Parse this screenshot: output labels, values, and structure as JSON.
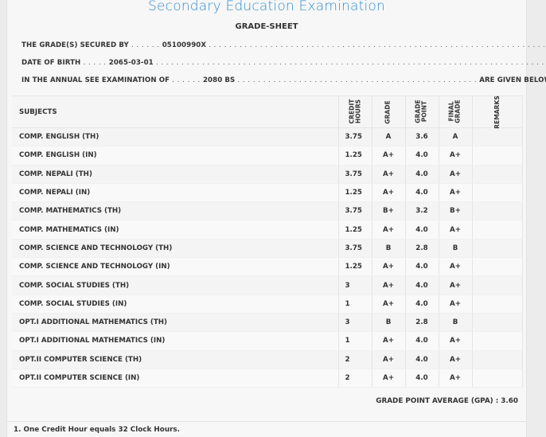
{
  "header": {
    "title": "Secondary Education Examination",
    "subtitle": "GRADE-SHEET"
  },
  "info": {
    "secured_by_label": "THE GRADE(S) SECURED BY",
    "secured_by_value": "05100990X",
    "dob_label": "DATE OF BIRTH",
    "dob_value": "2065-03-01",
    "exam_label": "IN THE ANNUAL SEE EXAMINATION OF",
    "exam_value": "2080 BS",
    "exam_suffix": "ARE GIVEN BELOW"
  },
  "table": {
    "headers": {
      "subjects": "SUBJECTS",
      "credit_hours": "CREDIT HOURS",
      "grade": "GRADE",
      "grade_point": "GRADE POINT",
      "final_grade": "FINAL GRADE",
      "remarks": "REMARKS"
    },
    "rows": [
      {
        "subject": "COMP. ENGLISH (TH)",
        "credit": "3.75",
        "grade": "A",
        "point": "3.6",
        "final": "A"
      },
      {
        "subject": "COMP. ENGLISH (IN)",
        "credit": "1.25",
        "grade": "A+",
        "point": "4.0",
        "final": "A+"
      },
      {
        "subject": "COMP. NEPALI (TH)",
        "credit": "3.75",
        "grade": "A+",
        "point": "4.0",
        "final": "A+"
      },
      {
        "subject": "COMP. NEPALI (IN)",
        "credit": "1.25",
        "grade": "A+",
        "point": "4.0",
        "final": "A+"
      },
      {
        "subject": "COMP. MATHEMATICS (TH)",
        "credit": "3.75",
        "grade": "B+",
        "point": "3.2",
        "final": "B+"
      },
      {
        "subject": "COMP. MATHEMATICS (IN)",
        "credit": "1.25",
        "grade": "A+",
        "point": "4.0",
        "final": "A+"
      },
      {
        "subject": "COMP. SCIENCE AND TECHNOLOGY (TH)",
        "credit": "3.75",
        "grade": "B",
        "point": "2.8",
        "final": "B"
      },
      {
        "subject": "COMP. SCIENCE AND TECHNOLOGY (IN)",
        "credit": "1.25",
        "grade": "A+",
        "point": "4.0",
        "final": "A+"
      },
      {
        "subject": "COMP. SOCIAL STUDIES (TH)",
        "credit": "3",
        "grade": "A+",
        "point": "4.0",
        "final": "A+"
      },
      {
        "subject": "COMP. SOCIAL STUDIES (IN)",
        "credit": "1",
        "grade": "A+",
        "point": "4.0",
        "final": "A+"
      },
      {
        "subject": "OPT.I ADDITIONAL MATHEMATICS (TH)",
        "credit": "3",
        "grade": "B",
        "point": "2.8",
        "final": "B"
      },
      {
        "subject": "OPT.I ADDITIONAL MATHEMATICS (IN)",
        "credit": "1",
        "grade": "A+",
        "point": "4.0",
        "final": "A+"
      },
      {
        "subject": "OPT.II COMPUTER SCIENCE (TH)",
        "credit": "2",
        "grade": "A+",
        "point": "4.0",
        "final": "A+"
      },
      {
        "subject": "OPT.II COMPUTER SCIENCE (IN)",
        "credit": "2",
        "grade": "A+",
        "point": "4.0",
        "final": "A+"
      }
    ]
  },
  "gpa": "GRADE POINT AVERAGE (GPA) : 3.60",
  "footnote": "1. One Credit Hour equals 32 Clock Hours.",
  "colors": {
    "title": "#2f8fd0",
    "text": "#333333",
    "background": "#f7f7f7"
  }
}
